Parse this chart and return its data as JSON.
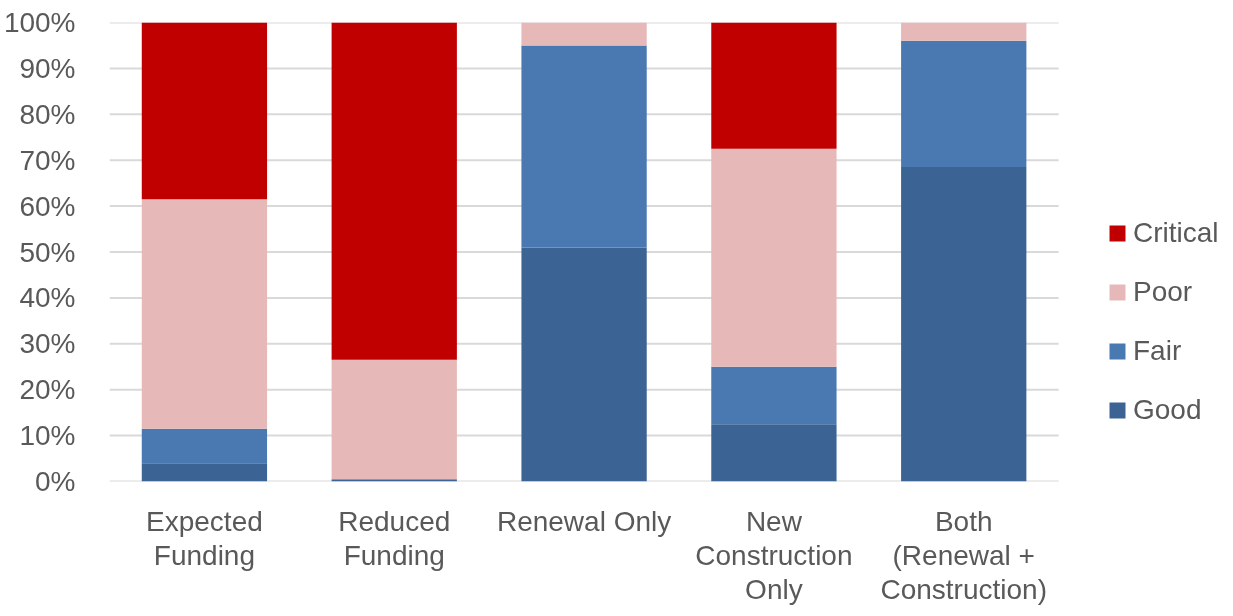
{
  "chart_data": {
    "type": "bar",
    "stacked": true,
    "categories": [
      "Expected Funding",
      "Reduced Funding",
      "Renewal Only",
      "New Construction Only",
      "Both (Renewal + Construction)"
    ],
    "series": [
      {
        "name": "Good",
        "color": "#3b6495",
        "values": [
          4,
          0.5,
          51,
          12.5,
          68.5
        ]
      },
      {
        "name": "Fair",
        "color": "#4a78b0",
        "values": [
          7.5,
          null,
          44,
          12.5,
          27.5
        ]
      },
      {
        "name": "Poor",
        "color": "#e6b8b7",
        "values": [
          50,
          26,
          5,
          47.5,
          4
        ]
      },
      {
        "name": "Critical",
        "color": "#c00000",
        "values": [
          38.5,
          73.5,
          null,
          27.5,
          null
        ]
      }
    ],
    "ylim": [
      0,
      100
    ],
    "yticks": [
      {
        "value": 0,
        "label": "0%"
      },
      {
        "value": 10,
        "label": "10%"
      },
      {
        "value": 20,
        "label": "20%"
      },
      {
        "value": 30,
        "label": "30%"
      },
      {
        "value": 40,
        "label": "40%"
      },
      {
        "value": 50,
        "label": "50%"
      },
      {
        "value": 60,
        "label": "60%"
      },
      {
        "value": 70,
        "label": "70%"
      },
      {
        "value": 80,
        "label": "80%"
      },
      {
        "value": 90,
        "label": "90%"
      },
      {
        "value": 100,
        "label": "100%"
      }
    ],
    "grid": "y",
    "legend": "right"
  }
}
